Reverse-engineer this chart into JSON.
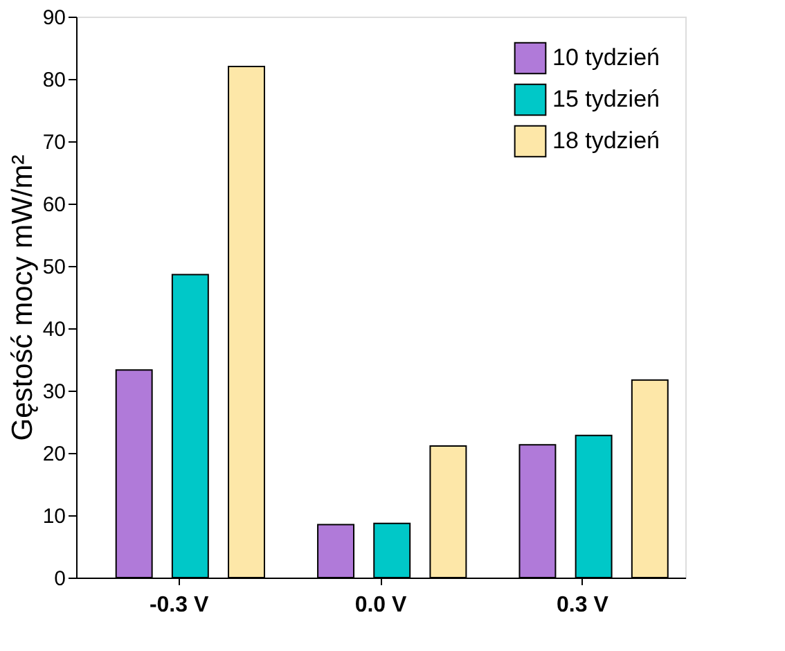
{
  "chart_data": {
    "type": "bar",
    "ylabel": "Gęstość mocy mW/m²",
    "categories": [
      "-0.3 V",
      "0.0 V",
      "0.3 V"
    ],
    "series": [
      {
        "name": "10 tydzień",
        "color": "#b07ad9",
        "values": [
          33.3,
          8.5,
          21.3
        ]
      },
      {
        "name": "15 tydzień",
        "color": "#00c8c8",
        "values": [
          48.6,
          8.7,
          22.8
        ]
      },
      {
        "name": "18 tydzień",
        "color": "#fde7a8",
        "values": [
          82,
          21.1,
          31.7
        ]
      }
    ],
    "ylim": [
      0,
      90
    ],
    "yticks": [
      0,
      10,
      20,
      30,
      40,
      50,
      60,
      70,
      80,
      90
    ],
    "grid": false,
    "legend": "top right"
  }
}
